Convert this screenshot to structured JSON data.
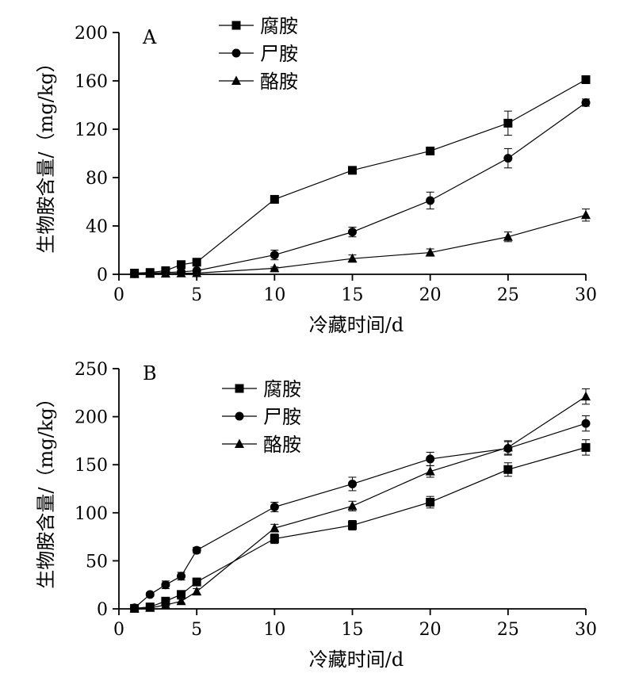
{
  "chart_data": [
    {
      "type": "line",
      "panel_label": "A",
      "xlabel": "冷藏时间/d",
      "ylabel": "生物胺含量/（mg/kg）",
      "xlim": [
        0,
        30
      ],
      "ylim": [
        0,
        200
      ],
      "xticks": [
        0,
        5,
        10,
        15,
        20,
        25,
        30
      ],
      "yticks": [
        0,
        40,
        80,
        120,
        160,
        200
      ],
      "legend_position": "top-center",
      "grid": false,
      "x": [
        1,
        2,
        3,
        4,
        5,
        10,
        15,
        20,
        25,
        30
      ],
      "series": [
        {
          "name": "腐胺",
          "marker": "square",
          "values": [
            1,
            1.5,
            3,
            8,
            10,
            62,
            86,
            102,
            125,
            161
          ],
          "errors": [
            0.5,
            0.5,
            1,
            1.5,
            1.5,
            2,
            2,
            2,
            10,
            2
          ]
        },
        {
          "name": "尸胺",
          "marker": "circle",
          "values": [
            0.5,
            1,
            1.5,
            2,
            3,
            16,
            35,
            61,
            96,
            142
          ],
          "errors": [
            0.5,
            0.5,
            0.5,
            0.5,
            0.5,
            4,
            4,
            7,
            8,
            3
          ]
        },
        {
          "name": "酪胺",
          "marker": "triangle",
          "values": [
            0.2,
            0.4,
            0.6,
            0.8,
            1,
            5,
            13,
            18,
            31,
            49
          ],
          "errors": [
            0.2,
            0.2,
            0.2,
            0.2,
            0.3,
            1,
            3,
            3,
            4,
            5
          ]
        }
      ]
    },
    {
      "type": "line",
      "panel_label": "B",
      "xlabel": "冷藏时间/d",
      "ylabel": "生物胺含量/（mg/kg）",
      "xlim": [
        0,
        30
      ],
      "ylim": [
        0,
        250
      ],
      "xticks": [
        0,
        5,
        10,
        15,
        20,
        25,
        30
      ],
      "yticks": [
        0,
        50,
        100,
        150,
        200,
        250
      ],
      "legend_position": "top-center",
      "grid": false,
      "x": [
        1,
        2,
        3,
        4,
        5,
        10,
        15,
        20,
        25,
        30
      ],
      "series": [
        {
          "name": "腐胺",
          "marker": "square",
          "values": [
            0.5,
            2,
            8,
            15,
            28,
            73,
            87,
            111,
            145,
            168
          ],
          "errors": [
            0.5,
            1,
            2,
            3,
            3,
            5,
            5,
            6,
            7,
            8
          ]
        },
        {
          "name": "尸胺",
          "marker": "circle",
          "values": [
            1,
            15,
            25,
            34,
            61,
            106,
            130,
            156,
            167,
            193
          ],
          "errors": [
            0.5,
            2,
            4,
            4,
            3,
            5,
            7,
            7,
            7,
            8
          ]
        },
        {
          "name": "酪胺",
          "marker": "triangle",
          "values": [
            0.3,
            1,
            4,
            8,
            18,
            84,
            107,
            143,
            168,
            221
          ],
          "errors": [
            0.2,
            0.5,
            1,
            2,
            3,
            4,
            5,
            6,
            7,
            8
          ]
        }
      ]
    }
  ]
}
